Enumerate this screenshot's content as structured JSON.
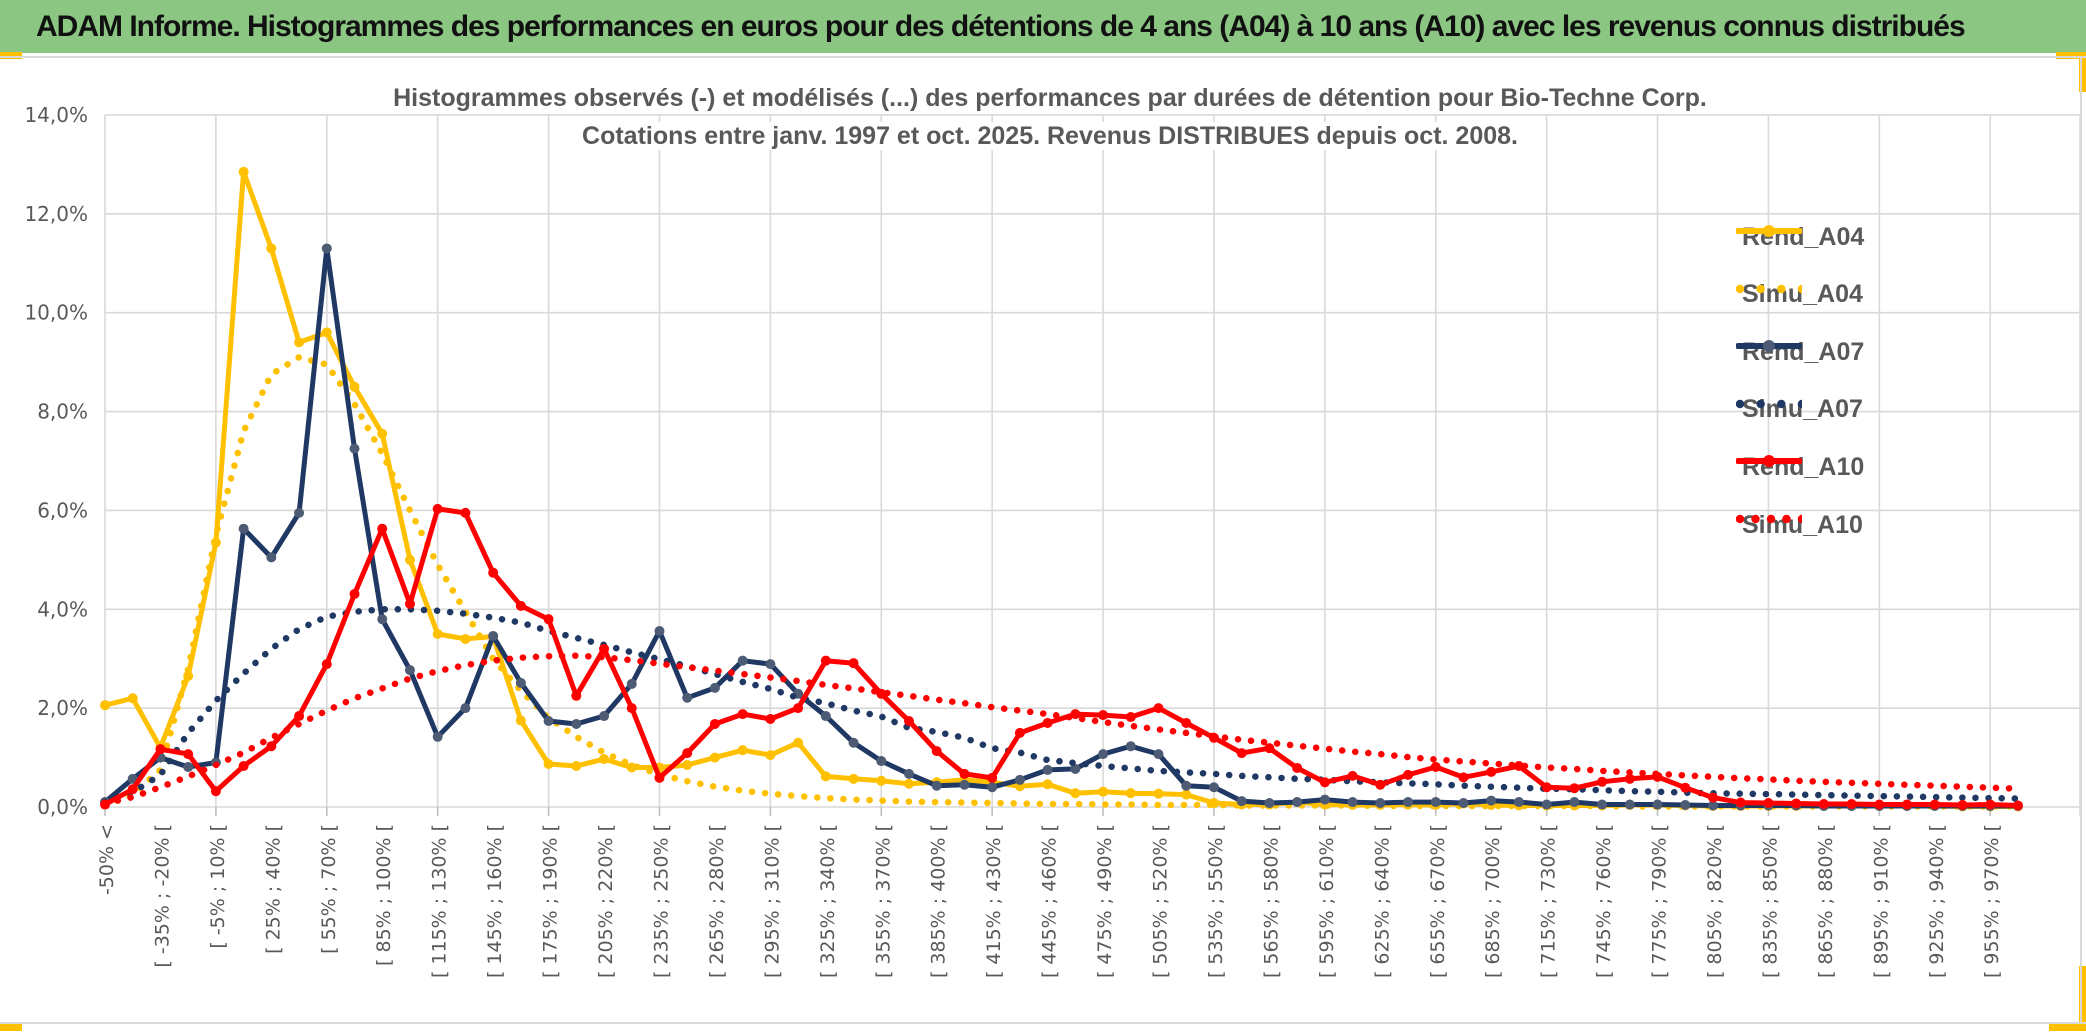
{
  "header": {
    "title": "ADAM Informe. Histogrammes des performances en euros pour des détentions de 4 ans (A04) à 10 ans (A10) avec les revenus connus distribués"
  },
  "colors": {
    "header_green": "#8CC683",
    "accent_gold": "#FFC000",
    "grid_gray": "#D9D9D9",
    "text_gray": "#595959",
    "navy": "#1F3864",
    "navy_marker": "#4D5B74",
    "red": "#FF0000",
    "gold": "#FFC000"
  },
  "chart_data": {
    "type": "line",
    "title_line1": "Histogrammes observés (-) et modélisés (...) des performances par durées de détention pour Bio-Techne Corp.",
    "title_line2": "Cotations entre janv. 1997 et oct. 2025. Revenus DISTRIBUES depuis oct. 2008.",
    "ylabel": "",
    "xlabel": "",
    "ylim": [
      0,
      14
    ],
    "y_ticks": [
      "14,0%",
      "12,0%",
      "10,0%",
      "8,0%",
      "6,0%",
      "4,0%",
      "2,0%",
      "0,0%"
    ],
    "grid": true,
    "legend_position": "right",
    "n_points": 70,
    "x_label_every": 2,
    "x_labels": [
      "-50% <",
      "[ -35% ; -20% [",
      "[ -5% ; 10% [",
      "[ 25% ; 40% [",
      "[ 55% ; 70% [",
      "[ 85% ; 100% [",
      "[ 115% ; 130% [",
      "[ 145% ; 160% [",
      "[ 175% ; 190% [",
      "[ 205% ; 220% [",
      "[ 235% ; 250% [",
      "[ 265% ; 280% [",
      "[ 295% ; 310% [",
      "[ 325% ; 340% [",
      "[ 355% ; 370% [",
      "[ 385% ; 400% [",
      "[ 415% ; 430% [",
      "[ 445% ; 460% [",
      "[ 475% ; 490% [",
      "[ 505% ; 520% [",
      "[ 535% ; 550% [",
      "[ 565% ; 580% [",
      "[ 595% ; 610% [",
      "[ 625% ; 640% [",
      "[ 655% ; 670% [",
      "[ 685% ; 700% [",
      "[ 715% ; 730% [",
      "[ 745% ; 760% [",
      "[ 775% ; 790% [",
      "[ 805% ; 820% [",
      "[ 835% ; 850% [",
      "[ 865% ; 880% [",
      "[ 895% ; 910% [",
      "[ 925% ; 940% [",
      "[ 955% ; 970% ["
    ],
    "series": [
      {
        "name": "Rend_A04",
        "style": "solid",
        "color": "#FFC000",
        "marker_color": "#FFC000",
        "values": [
          2.06,
          2.2,
          1.2,
          2.65,
          5.35,
          12.85,
          11.3,
          9.4,
          9.6,
          8.5,
          7.55,
          5.0,
          3.5,
          3.4,
          3.45,
          1.75,
          0.87,
          0.83,
          0.97,
          0.8,
          0.8,
          0.85,
          1.0,
          1.15,
          1.05,
          1.3,
          0.62,
          0.57,
          0.53,
          0.47,
          0.5,
          0.55,
          0.5,
          0.42,
          0.46,
          0.28,
          0.31,
          0.28,
          0.27,
          0.25,
          0.08,
          0.05,
          0.05,
          0.1,
          0.05,
          0.04,
          0.04,
          0.05,
          0.04,
          0.07,
          0.04,
          0.03,
          0.03,
          0.03,
          0.03,
          0.04,
          0.04,
          0.03,
          0.02,
          0.02,
          0.02,
          0.02,
          0.02,
          0.02,
          0.02,
          0.02,
          0.02,
          0.01,
          0.01,
          0.01
        ]
      },
      {
        "name": "Simu_A04",
        "style": "dotted",
        "color": "#FFC000",
        "values": [
          0.03,
          0.26,
          0.75,
          2.8,
          5.5,
          7.6,
          8.75,
          9.1,
          8.95,
          8.15,
          7.15,
          6.0,
          4.9,
          3.95,
          3.0,
          2.35,
          1.8,
          1.42,
          1.1,
          0.85,
          0.66,
          0.52,
          0.41,
          0.33,
          0.27,
          0.22,
          0.18,
          0.15,
          0.13,
          0.11,
          0.1,
          0.09,
          0.08,
          0.07,
          0.06,
          0.06,
          0.05,
          0.05,
          0.04,
          0.04,
          0.04,
          0.03,
          0.03,
          0.03,
          0.03,
          0.03,
          0.02,
          0.02,
          0.02,
          0.02,
          0.02,
          0.02,
          0.02,
          0.02,
          0.02,
          0.01,
          0.01,
          0.01,
          0.01,
          0.01,
          0.01,
          0.01,
          0.01,
          0.01,
          0.01,
          0.01,
          0.01,
          0.01,
          0.01,
          0.01
        ]
      },
      {
        "name": "Rend_A07",
        "style": "solid",
        "color": "#1F3864",
        "marker_color": "#4D5B74",
        "values": [
          0.1,
          0.57,
          1.0,
          0.81,
          0.9,
          5.63,
          5.05,
          5.95,
          11.3,
          7.25,
          3.8,
          2.77,
          1.42,
          2.0,
          3.46,
          2.51,
          1.74,
          1.68,
          1.84,
          2.49,
          3.56,
          2.21,
          2.41,
          2.96,
          2.89,
          2.29,
          1.84,
          1.3,
          0.93,
          0.67,
          0.43,
          0.45,
          0.4,
          0.55,
          0.75,
          0.77,
          1.07,
          1.23,
          1.07,
          0.43,
          0.4,
          0.12,
          0.08,
          0.1,
          0.15,
          0.1,
          0.08,
          0.1,
          0.1,
          0.08,
          0.13,
          0.1,
          0.05,
          0.1,
          0.05,
          0.05,
          0.05,
          0.04,
          0.03,
          0.03,
          0.03,
          0.03,
          0.02,
          0.02,
          0.02,
          0.02,
          0.02,
          0.02,
          0.02,
          0.02
        ]
      },
      {
        "name": "Simu_A07",
        "style": "dotted",
        "color": "#1F3864",
        "values": [
          0.1,
          0.3,
          0.65,
          1.5,
          2.15,
          2.7,
          3.2,
          3.6,
          3.85,
          3.95,
          4.0,
          4.0,
          3.97,
          3.91,
          3.83,
          3.73,
          3.56,
          3.42,
          3.28,
          3.13,
          2.99,
          2.85,
          2.69,
          2.53,
          2.39,
          2.21,
          2.1,
          1.95,
          1.83,
          1.6,
          1.52,
          1.4,
          1.19,
          1.1,
          0.95,
          0.89,
          0.83,
          0.78,
          0.73,
          0.7,
          0.67,
          0.63,
          0.6,
          0.57,
          0.55,
          0.52,
          0.5,
          0.48,
          0.46,
          0.43,
          0.41,
          0.39,
          0.37,
          0.36,
          0.34,
          0.32,
          0.31,
          0.29,
          0.28,
          0.27,
          0.26,
          0.25,
          0.24,
          0.23,
          0.22,
          0.21,
          0.2,
          0.19,
          0.18,
          0.17
        ]
      },
      {
        "name": "Rend_A10",
        "style": "solid",
        "color": "#FF0000",
        "marker_color": "#FF0000",
        "values": [
          0.05,
          0.36,
          1.17,
          1.07,
          0.32,
          0.83,
          1.23,
          1.84,
          2.89,
          4.31,
          5.63,
          4.11,
          6.03,
          5.95,
          4.74,
          4.07,
          3.8,
          2.25,
          3.2,
          2.0,
          0.59,
          1.09,
          1.68,
          1.88,
          1.78,
          2.0,
          2.96,
          2.91,
          2.29,
          1.74,
          1.13,
          0.67,
          0.59,
          1.5,
          1.7,
          1.88,
          1.86,
          1.82,
          2.0,
          1.7,
          1.4,
          1.09,
          1.19,
          0.79,
          0.5,
          0.63,
          0.45,
          0.65,
          0.81,
          0.6,
          0.71,
          0.83,
          0.4,
          0.38,
          0.51,
          0.57,
          0.61,
          0.39,
          0.19,
          0.09,
          0.08,
          0.07,
          0.06,
          0.06,
          0.05,
          0.05,
          0.05,
          0.04,
          0.05,
          0.03
        ]
      },
      {
        "name": "Simu_A10",
        "style": "dotted",
        "color": "#FF0000",
        "values": [
          0.07,
          0.2,
          0.4,
          0.62,
          0.85,
          1.1,
          1.4,
          1.68,
          1.95,
          2.2,
          2.4,
          2.6,
          2.75,
          2.87,
          2.96,
          3.02,
          3.05,
          3.06,
          3.03,
          2.97,
          2.9,
          2.83,
          2.76,
          2.69,
          2.62,
          2.55,
          2.47,
          2.4,
          2.32,
          2.25,
          2.17,
          2.1,
          2.02,
          1.95,
          1.88,
          1.8,
          1.72,
          1.64,
          1.57,
          1.5,
          1.43,
          1.36,
          1.3,
          1.24,
          1.18,
          1.12,
          1.07,
          1.01,
          0.96,
          0.92,
          0.88,
          0.84,
          0.8,
          0.77,
          0.73,
          0.7,
          0.67,
          0.64,
          0.61,
          0.58,
          0.56,
          0.53,
          0.51,
          0.49,
          0.47,
          0.45,
          0.43,
          0.41,
          0.39,
          0.37
        ]
      }
    ],
    "legend": [
      "Rend_A04",
      "Simu_A04",
      "Rend_A07",
      "Simu_A07",
      "Rend_A10",
      "Simu_A10"
    ]
  }
}
